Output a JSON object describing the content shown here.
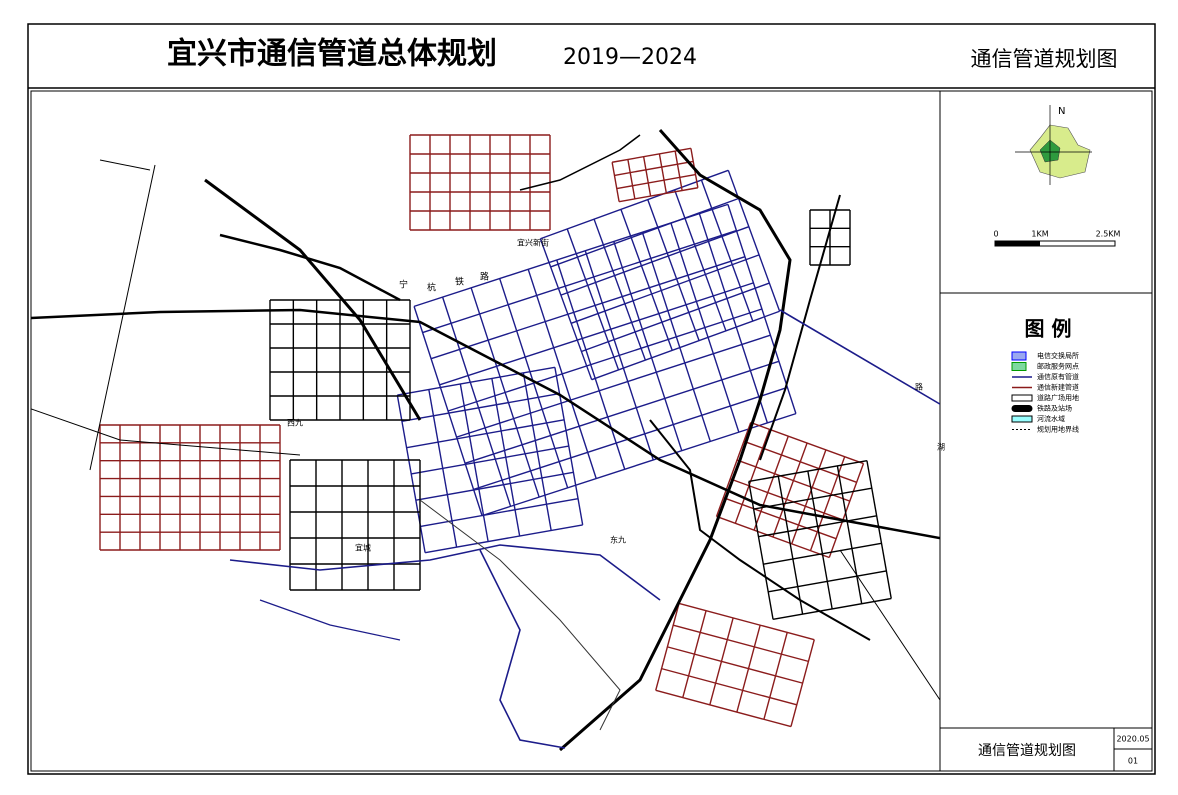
{
  "header": {
    "title": "宜兴市通信管道总体规划",
    "years": "2019—2024",
    "drawing_name": "通信管道规划图"
  },
  "compass": {
    "north": "N"
  },
  "scale_bar": {
    "labels": [
      "0",
      "1KM",
      "2.5KM"
    ]
  },
  "legend": {
    "title": "图  例",
    "items": [
      "电信交换局所",
      "邮政服务网点",
      "通信原有管道",
      "通信新建管道",
      "道路广场用地",
      "铁路及站场",
      "河流水域",
      "规划用地界线"
    ]
  },
  "map_labels": [
    "宜兴新街",
    "宁",
    "杭",
    "铁",
    "路",
    "西九",
    "东九",
    "宜城",
    "湖",
    "路"
  ],
  "title_block": {
    "drawing_name": "通信管道规划图",
    "date": "2020.05",
    "sheet": "01"
  }
}
